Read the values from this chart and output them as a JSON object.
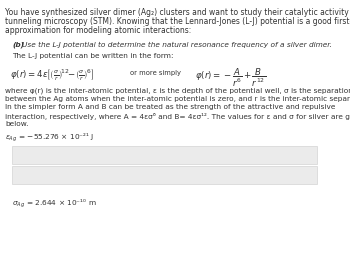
{
  "bg_color": "#ffffff",
  "gray_box_color": "#ebebeb",
  "gray_box_border": "#cccccc",
  "text_color": "#333333",
  "title_line1": "You have synthesized silver dimer (Ag₂) clusters and want to study their catalytic activity using scan",
  "title_line2": "tunneling microscopy (STM). Knowing that the Lennard-Jones (L-J) potential is a good first-order",
  "title_line3": "approximation for modeling atomic interactions:",
  "part_b_label": "(b)",
  "part_b_text": "Use the L-J potential to determine the natural resonance frequency of a silver dimer.",
  "lj_intro": "The L-J potential can be written in the form:",
  "or_more_simply": "or more simply",
  "desc_line1": "where φ(r) is the inter-atomic potential, ε is the depth of the potential well, σ is the separation",
  "desc_line2": "between the Ag atoms when the inter-atomic potential is zero, and r is the inter-atomic separation.",
  "desc_line3": "In the simpler form A and B can be treated as the strength of the attractive and repulsive",
  "desc_line4": "interaction, respectively, where A = 4εσ⁶ and B= 4εσ¹². The values for ε and σ for silver are given",
  "desc_line5": "below.",
  "epsilon_label": "ε",
  "epsilon_sub": "Ag",
  "epsilon_val": " = −55.276 × 10⁻²¹ J",
  "sigma_label": "σ",
  "sigma_sub": "Ag",
  "sigma_val": " = 2.644 × 10⁻¹⁰ m",
  "title_fs": 5.5,
  "body_fs": 5.3,
  "formula_fs": 6.2,
  "small_fs": 4.9
}
